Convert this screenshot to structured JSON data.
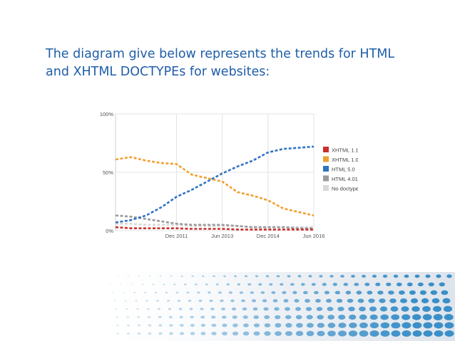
{
  "slide": {
    "text_line1": "The diagram give below represents the trends for HTML",
    "text_line2": "and XHTML DOCTYPEs for websites:"
  },
  "chart_data": {
    "type": "line",
    "title": "",
    "xlabel": "",
    "ylabel": "",
    "x_ticks": [
      "Dec 2011",
      "Jun 2013",
      "Dec 2014",
      "Jun 2016"
    ],
    "y_ticks": [
      "100%",
      "50%",
      "0%"
    ],
    "ylim": [
      0,
      100
    ],
    "grid": true,
    "legend_position": "right",
    "x_range": [
      "Dec 2009",
      "Jun 2016"
    ],
    "series": [
      {
        "name": "XHTML 1.1",
        "color": "#c9302c",
        "x": [
          "Dec 2009",
          "Jun 2010",
          "Dec 2010",
          "Jun 2011",
          "Dec 2011",
          "Jun 2012",
          "Dec 2012",
          "Jun 2013",
          "Dec 2013",
          "Jun 2014",
          "Dec 2014",
          "Jun 2015",
          "Dec 2015",
          "Jun 2016"
        ],
        "values": [
          3,
          2,
          2,
          2,
          2,
          1.5,
          1.5,
          1.5,
          1,
          1,
          1,
          1,
          1,
          1
        ]
      },
      {
        "name": "XHTML 1.0",
        "color": "#f0a030",
        "x": [
          "Dec 2009",
          "Jun 2010",
          "Dec 2010",
          "Jun 2011",
          "Dec 2011",
          "Jun 2012",
          "Dec 2012",
          "Jun 2013",
          "Dec 2013",
          "Jun 2014",
          "Dec 2014",
          "Jun 2015",
          "Dec 2015",
          "Jun 2016"
        ],
        "values": [
          61,
          63,
          60,
          58,
          57,
          48,
          45,
          42,
          33,
          30,
          26,
          19,
          16,
          13
        ]
      },
      {
        "name": "HTML 5.0",
        "color": "#2f73c4",
        "x": [
          "Dec 2009",
          "Jun 2010",
          "Dec 2010",
          "Jun 2011",
          "Dec 2011",
          "Jun 2012",
          "Dec 2012",
          "Jun 2013",
          "Dec 2013",
          "Jun 2014",
          "Dec 2014",
          "Jun 2015",
          "Dec 2015",
          "Jun 2016"
        ],
        "values": [
          7,
          9,
          13,
          20,
          29,
          35,
          42,
          49,
          55,
          60,
          67,
          70,
          71,
          72
        ]
      },
      {
        "name": "HTML 4.01",
        "color": "#9a9a9a",
        "x": [
          "Dec 2009",
          "Jun 2010",
          "Dec 2010",
          "Jun 2011",
          "Dec 2011",
          "Jun 2012",
          "Dec 2012",
          "Jun 2013",
          "Dec 2013",
          "Jun 2014",
          "Dec 2014",
          "Jun 2015",
          "Dec 2015",
          "Jun 2016"
        ],
        "values": [
          13,
          12,
          10,
          8,
          6,
          5,
          5,
          5,
          4,
          3,
          3,
          3,
          2,
          2
        ]
      },
      {
        "name": "No doctype",
        "color": "#d9d9d9",
        "x": [
          "Dec 2009",
          "Jun 2010",
          "Dec 2010",
          "Jun 2011",
          "Dec 2011",
          "Jun 2012",
          "Dec 2012",
          "Jun 2013",
          "Dec 2013",
          "Jun 2014",
          "Dec 2014",
          "Jun 2015",
          "Dec 2015",
          "Jun 2016"
        ],
        "values": [
          6,
          6,
          5,
          5,
          5,
          4,
          4,
          4,
          4,
          3,
          3,
          3,
          3,
          3
        ]
      }
    ]
  },
  "decoration": {
    "dot_color": "#3a8fc8"
  }
}
